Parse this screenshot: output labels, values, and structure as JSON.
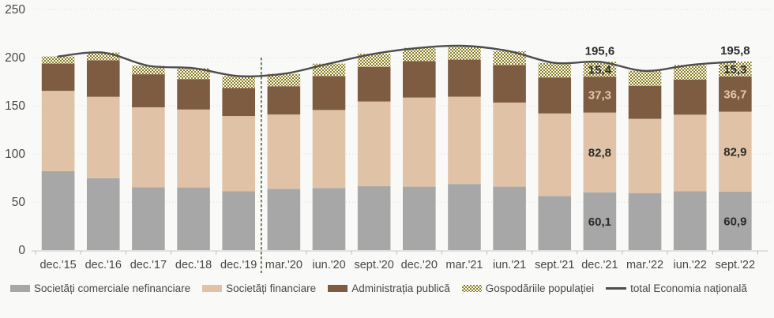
{
  "background": "#f9f9f8",
  "chart_data": {
    "type": "bar",
    "stacked": true,
    "overlay": "line",
    "grid": "dotted-horizontal",
    "legend_position": "bottom",
    "ylim": [
      0,
      250
    ],
    "yticks": [
      0,
      50,
      100,
      150,
      200,
      250
    ],
    "categories": [
      "dec.'15",
      "dec.'16",
      "dec.'17",
      "dec.'18",
      "dec.'19",
      "mar.'20",
      "iun.'20",
      "sept.'20",
      "dec.'20",
      "mar.'21",
      "iun.'21",
      "sept.'21",
      "dec.'21",
      "mar.'22",
      "iun.'22",
      "sept.'22"
    ],
    "series": [
      {
        "name": "Societăți comerciale nefinanciare",
        "color": "#a7a7a7",
        "label_color": "#2b2b2b",
        "values": [
          82.0,
          74.7,
          65.4,
          65.1,
          61.3,
          63.7,
          64.6,
          66.5,
          65.9,
          68.7,
          65.9,
          56.3,
          60.1,
          59.3,
          61.3,
          60.9
        ]
      },
      {
        "name": "Societăți financiare",
        "color": "#e0c3a6",
        "label_color": "#2b2b2b",
        "values": [
          83.5,
          84.6,
          83.0,
          81.0,
          78.0,
          77.2,
          81.0,
          87.9,
          92.6,
          90.7,
          87.4,
          85.7,
          82.8,
          77.1,
          79.4,
          82.9
        ]
      },
      {
        "name": "Administrația publică",
        "color": "#7d5c41",
        "label_color": "#e3c7ab",
        "values": [
          28.3,
          37.9,
          34.3,
          31.6,
          29.1,
          29.4,
          35.2,
          36.0,
          37.9,
          38.5,
          39.0,
          37.4,
          37.3,
          34.3,
          36.5,
          36.7
        ]
      },
      {
        "name": "Gospodăriile populației",
        "pattern": "checker",
        "color": "#8a7b1a",
        "pattern_bg": "#ffffff",
        "label_color": "#2b2b2b",
        "values": [
          7.4,
          8.0,
          8.8,
          11.3,
          12.4,
          12.9,
          12.9,
          13.5,
          13.7,
          14.3,
          14.3,
          15.1,
          15.4,
          15.5,
          15.1,
          15.3
        ]
      }
    ],
    "line_series": {
      "name": "total Economia națională",
      "color": "#4d4d4d",
      "values": [
        201.2,
        205.2,
        191.5,
        189.0,
        180.8,
        183.2,
        193.7,
        203.9,
        210.1,
        212.2,
        206.6,
        194.5,
        195.6,
        186.2,
        192.3,
        195.8
      ]
    },
    "separator": {
      "after_category": "dec.'19",
      "style": "dashed",
      "color": "#3c5a21"
    },
    "annotations": [
      {
        "category": "dec.'21",
        "total_label": "195,6",
        "segment_labels": [
          "60,1",
          "82,8",
          "37,3",
          "15,4"
        ]
      },
      {
        "category": "sept.'22",
        "total_label": "195,8",
        "segment_labels": [
          "60,9",
          "82,9",
          "36,7",
          "15,3"
        ]
      }
    ]
  },
  "legend": {
    "items": [
      "Societăți comerciale nefinanciare",
      "Societăți financiare",
      "Administrația publică",
      "Gospodăriile populației",
      "total Economia națională"
    ]
  }
}
